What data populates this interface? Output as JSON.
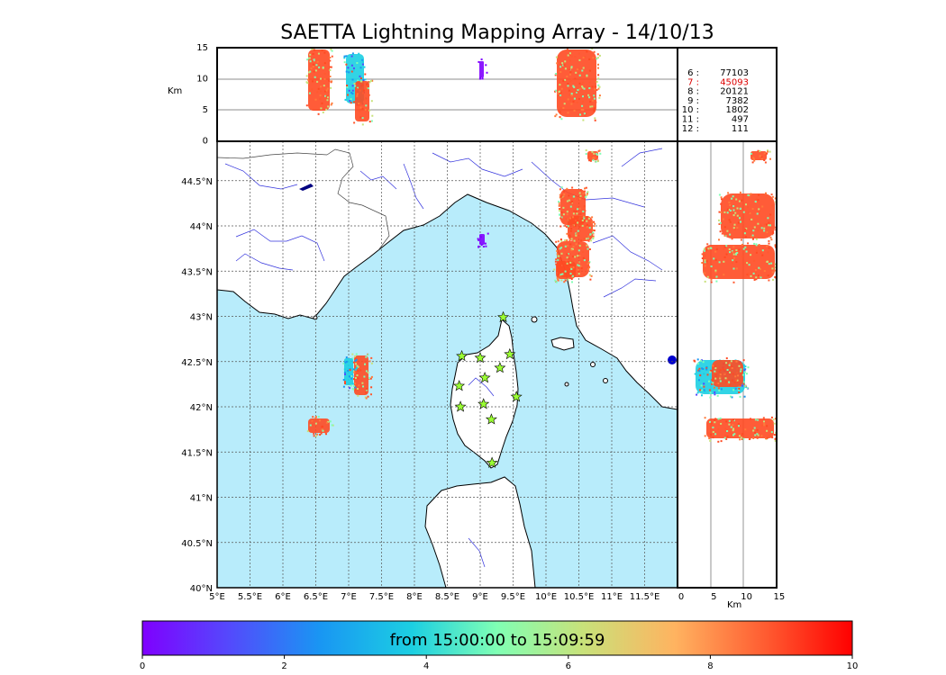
{
  "title": "SAETTA Lightning Mapping Array - 14/10/13",
  "colors": {
    "sea": "#b8ecfb",
    "land": "#ffffff",
    "river": "#3333dd",
    "strikes_main": "#ff4a22",
    "station": "#9bff33"
  },
  "height_panel": {
    "ylabel": "Km",
    "yticks": [
      "15",
      "10",
      "5",
      "0"
    ]
  },
  "map": {
    "lon_ticks": [
      "5°E",
      "5.5°E",
      "6°E",
      "6.5°E",
      "7°E",
      "7.5°E",
      "8°E",
      "8.5°E",
      "9°E",
      "9.5°E",
      "10°E",
      "10.5°E",
      "11°E",
      "11.5°E"
    ],
    "lat_ticks": [
      "44.5°N",
      "44°N",
      "43.5°N",
      "43°N",
      "42.5°N",
      "42°N",
      "41.5°N",
      "41°N",
      "40.5°N",
      "40°N"
    ]
  },
  "side_panel": {
    "xlabel": "Km",
    "xticks": [
      "0",
      "5",
      "10",
      "15"
    ]
  },
  "stats": [
    {
      "label": "6  :",
      "value": "77103",
      "color": "#000000"
    },
    {
      "label": "7  :",
      "value": "45093",
      "color": "#dd0000"
    },
    {
      "label": "8  :",
      "value": "20121",
      "color": "#000000"
    },
    {
      "label": "9  :",
      "value": "7382",
      "color": "#000000"
    },
    {
      "label": "10 :",
      "value": "1802",
      "color": "#000000"
    },
    {
      "label": "11 :",
      "value": "497",
      "color": "#000000"
    },
    {
      "label": "12 :",
      "value": "111",
      "color": "#000000"
    }
  ],
  "colorbar": {
    "label": "from 15:00:00 to 15:09:59",
    "ticks": [
      "0",
      "2",
      "4",
      "6",
      "8",
      "10"
    ],
    "range": [
      0,
      10
    ]
  },
  "stations": [
    {
      "lon": 9.35,
      "lat": 42.99
    },
    {
      "lon": 8.72,
      "lat": 42.56
    },
    {
      "lon": 9.0,
      "lat": 42.54
    },
    {
      "lon": 9.45,
      "lat": 42.58
    },
    {
      "lon": 9.3,
      "lat": 42.43
    },
    {
      "lon": 9.07,
      "lat": 42.32
    },
    {
      "lon": 8.68,
      "lat": 42.23
    },
    {
      "lon": 9.55,
      "lat": 42.11
    },
    {
      "lon": 9.05,
      "lat": 42.03
    },
    {
      "lon": 8.7,
      "lat": 42.0
    },
    {
      "lon": 9.17,
      "lat": 41.86
    },
    {
      "lon": 9.18,
      "lat": 41.38
    }
  ]
}
